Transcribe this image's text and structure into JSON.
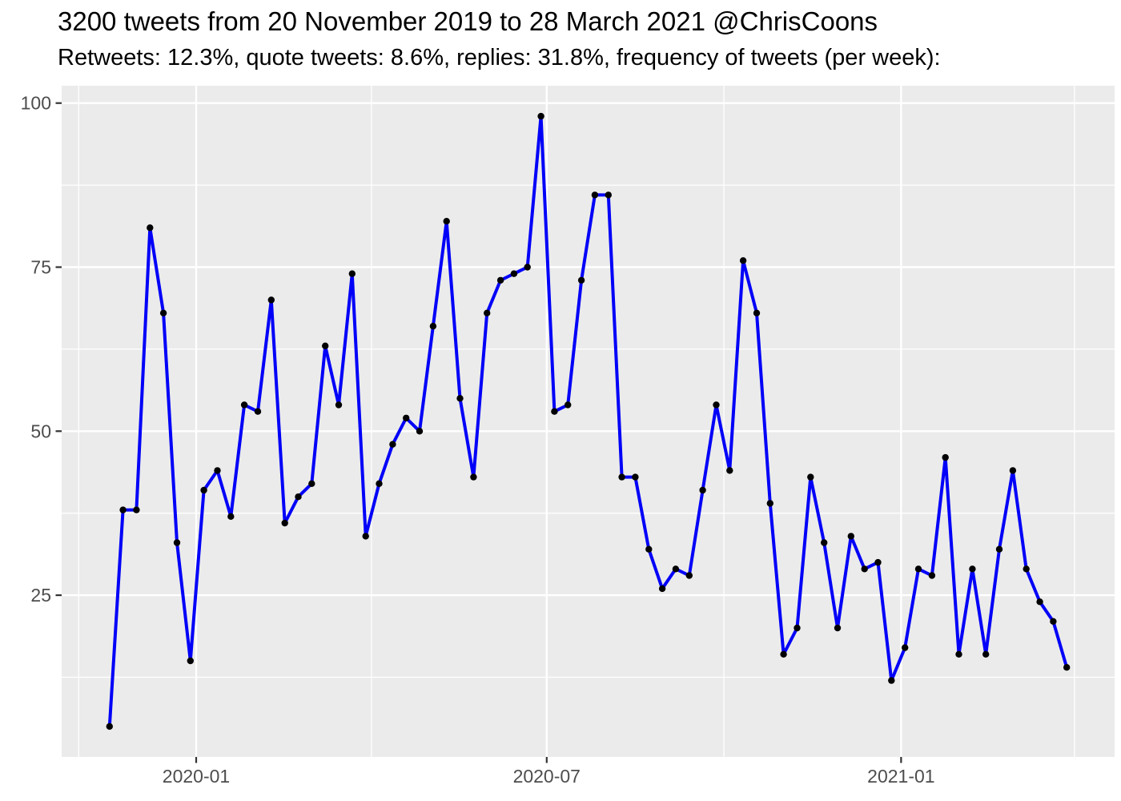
{
  "chart_data": {
    "type": "line",
    "title": "3200 tweets from 20 November 2019 to 28 March 2021 @ChrisCoons",
    "subtitle": "Retweets: 12.3%, quote tweets: 8.6%, replies: 31.8%, frequency of tweets (per week):",
    "grid": "on",
    "legend": "none",
    "series": [
      {
        "name": "tweets-per-week",
        "x": [
          "2019-11-17",
          "2019-11-24",
          "2019-12-01",
          "2019-12-08",
          "2019-12-15",
          "2019-12-22",
          "2019-12-29",
          "2020-01-05",
          "2020-01-12",
          "2020-01-19",
          "2020-01-26",
          "2020-02-02",
          "2020-02-09",
          "2020-02-16",
          "2020-02-23",
          "2020-03-01",
          "2020-03-08",
          "2020-03-15",
          "2020-03-22",
          "2020-03-29",
          "2020-04-05",
          "2020-04-12",
          "2020-04-19",
          "2020-04-26",
          "2020-05-03",
          "2020-05-10",
          "2020-05-17",
          "2020-05-24",
          "2020-05-31",
          "2020-06-07",
          "2020-06-14",
          "2020-06-21",
          "2020-06-28",
          "2020-07-05",
          "2020-07-12",
          "2020-07-19",
          "2020-07-26",
          "2020-08-02",
          "2020-08-09",
          "2020-08-16",
          "2020-08-23",
          "2020-08-30",
          "2020-09-06",
          "2020-09-13",
          "2020-09-20",
          "2020-09-27",
          "2020-10-04",
          "2020-10-11",
          "2020-10-18",
          "2020-10-25",
          "2020-11-01",
          "2020-11-08",
          "2020-11-15",
          "2020-11-22",
          "2020-11-29",
          "2020-12-06",
          "2020-12-13",
          "2020-12-20",
          "2020-12-27",
          "2021-01-03",
          "2021-01-10",
          "2021-01-17",
          "2021-01-24",
          "2021-01-31",
          "2021-02-07",
          "2021-02-14",
          "2021-02-21",
          "2021-02-28",
          "2021-03-07",
          "2021-03-14",
          "2021-03-21",
          "2021-03-28"
        ],
        "values": [
          5,
          38,
          38,
          81,
          68,
          33,
          15,
          41,
          44,
          37,
          54,
          53,
          70,
          36,
          40,
          42,
          63,
          54,
          74,
          34,
          42,
          48,
          52,
          50,
          66,
          82,
          55,
          43,
          68,
          73,
          74,
          75,
          98,
          53,
          54,
          73,
          86,
          86,
          43,
          43,
          32,
          26,
          29,
          28,
          41,
          54,
          44,
          76,
          68,
          39,
          16,
          20,
          43,
          33,
          20,
          34,
          29,
          30,
          12,
          17,
          29,
          28,
          46,
          16,
          29,
          16,
          32,
          44,
          29,
          24,
          21,
          14
        ]
      }
    ],
    "x_axis": {
      "label": "",
      "tick_labels": [
        "2020-01",
        "2020-07",
        "2021-01"
      ],
      "tick_dates": [
        "2020-01-01",
        "2020-07-01",
        "2021-01-01"
      ],
      "minor_dates": [
        "2019-11-01",
        "2020-04-01",
        "2020-10-01",
        "2021-04-01"
      ],
      "domain_days_offset": [
        -24.85,
        521.85
      ]
    },
    "y_axis": {
      "label": "",
      "tick_labels": [
        "25",
        "50",
        "75",
        "100"
      ],
      "tick_values": [
        25,
        50,
        75,
        100
      ],
      "minor_values": [
        12.5,
        37.5,
        62.5,
        87.5
      ],
      "ylim": [
        0.35,
        102.65
      ]
    },
    "colors": {
      "line": "#0000F8",
      "point": "#000000",
      "panel_bg": "#EBEBEB",
      "grid": "#FFFFFF",
      "axis_text": "#4D4D4D",
      "tick_mark": "#333333",
      "title_text": "#000000"
    }
  }
}
